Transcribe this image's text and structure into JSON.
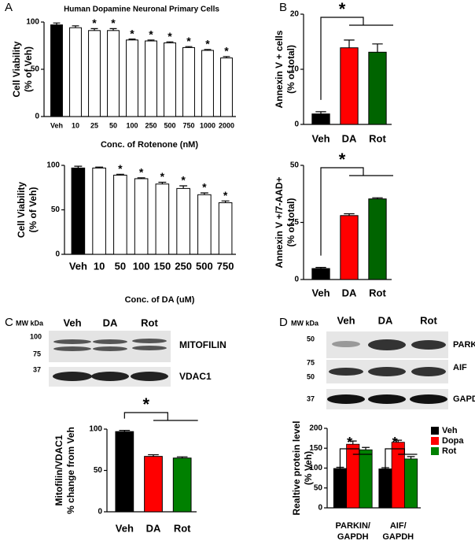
{
  "panel_labels": [
    "A",
    "B",
    "C",
    "D"
  ],
  "blots": [
    {
      "mw_label": "MW kDa",
      "lanes": [
        "Veh",
        "DA",
        "Rot"
      ],
      "markers": [
        "100",
        "75",
        "37"
      ],
      "rows": [
        "MITOFILIN",
        "VDAC1"
      ]
    },
    {
      "mw_label": "MW kDa",
      "lanes": [
        "Veh",
        "DA",
        "Rot"
      ],
      "markers": [
        "50",
        "75",
        "50",
        "37"
      ],
      "rows": [
        "PARKIN",
        "AIF",
        "GAPDH"
      ]
    }
  ],
  "chart_data": [
    {
      "type": "bar",
      "title": "Human Dopamine Neuronal Primary Cells",
      "y_label": [
        "Cell Viability",
        "(% of Veh)"
      ],
      "x_label": "Conc. of Rotenone (nM)",
      "categories": [
        "Veh",
        "10",
        "25",
        "50",
        "100",
        "250",
        "500",
        "750",
        "1000",
        "2000"
      ],
      "values": [
        97,
        94,
        91,
        91,
        81,
        80,
        78,
        73,
        70,
        62
      ],
      "errors": [
        2,
        2,
        2,
        2,
        1,
        1,
        1,
        1,
        1,
        1.5
      ],
      "colors": [
        "#000000",
        "#ffffff",
        "#ffffff",
        "#ffffff",
        "#ffffff",
        "#ffffff",
        "#ffffff",
        "#ffffff",
        "#ffffff",
        "#ffffff"
      ],
      "sig": [
        false,
        false,
        true,
        true,
        true,
        true,
        true,
        true,
        true,
        true
      ],
      "sig_label": "*",
      "ylim": [
        0,
        100
      ],
      "yticks": [
        0,
        50,
        100
      ]
    },
    {
      "type": "bar",
      "y_label": [
        "Cell Viability",
        "(% of Veh)"
      ],
      "x_label": "Conc. of DA (uM)",
      "categories": [
        "Veh",
        "10",
        "50",
        "100",
        "150",
        "250",
        "500",
        "750"
      ],
      "values": [
        97,
        97,
        89,
        85,
        79,
        74,
        67,
        58
      ],
      "errors": [
        2,
        1,
        1,
        1,
        2,
        3,
        2,
        2
      ],
      "colors": [
        "#000000",
        "#ffffff",
        "#ffffff",
        "#ffffff",
        "#ffffff",
        "#ffffff",
        "#ffffff",
        "#ffffff"
      ],
      "sig": [
        false,
        false,
        true,
        true,
        true,
        true,
        true,
        true
      ],
      "sig_label": "*",
      "ylim": [
        0,
        100
      ],
      "yticks": [
        0,
        50,
        100
      ]
    },
    {
      "type": "bar",
      "y_label": [
        "Annexin  V + cells",
        "(% of total)"
      ],
      "categories": [
        "Veh",
        "DA",
        "Rot"
      ],
      "values": [
        1.9,
        13.9,
        13.1
      ],
      "errors": [
        0.4,
        1.4,
        1.5
      ],
      "colors": [
        "#000000",
        "#ff0000",
        "#006400"
      ],
      "bracket_label": "*",
      "ylim": [
        0,
        20
      ],
      "yticks": [
        0,
        10,
        20
      ]
    },
    {
      "type": "bar",
      "y_label": [
        "Annexin  V +/7-AAD+",
        "(% of total)"
      ],
      "categories": [
        "Veh",
        "DA",
        "Rot"
      ],
      "values": [
        4.8,
        28,
        35.3
      ],
      "errors": [
        0.5,
        0.8,
        0.5
      ],
      "colors": [
        "#000000",
        "#ff0000",
        "#006400"
      ],
      "bracket_label": "*",
      "ylim": [
        0,
        50
      ],
      "yticks": [
        0,
        25,
        50
      ]
    },
    {
      "type": "bar",
      "y_label": [
        "Mitofilin/VDAC1",
        "% change from Veh"
      ],
      "categories": [
        "Veh",
        "DA",
        "Rot"
      ],
      "values": [
        97,
        67,
        65
      ],
      "errors": [
        1.5,
        2,
        1.5
      ],
      "colors": [
        "#000000",
        "#ff0000",
        "#008000"
      ],
      "bracket_label": "*",
      "ylim": [
        0,
        100
      ],
      "yticks": [
        0,
        50,
        100
      ]
    },
    {
      "type": "grouped_bar",
      "y_label": [
        "Realtive protein level",
        "(% Veh)"
      ],
      "categories": [
        [
          "PARKIN/",
          "GAPDH"
        ],
        [
          "AIF/",
          "GAPDH"
        ]
      ],
      "series": [
        {
          "name": "Veh",
          "color": "#000000",
          "values": [
            99,
            98
          ],
          "errors": [
            3,
            3
          ]
        },
        {
          "name": "Dopa",
          "color": "#ff0000",
          "values": [
            160,
            165
          ],
          "errors": [
            8,
            5
          ]
        },
        {
          "name": "Rot",
          "color": "#008000",
          "values": [
            146,
            123
          ],
          "errors": [
            6,
            6
          ]
        }
      ],
      "bracket_label": "*",
      "ylim": [
        0,
        200
      ],
      "yticks": [
        0,
        50,
        100,
        150,
        200
      ]
    }
  ]
}
